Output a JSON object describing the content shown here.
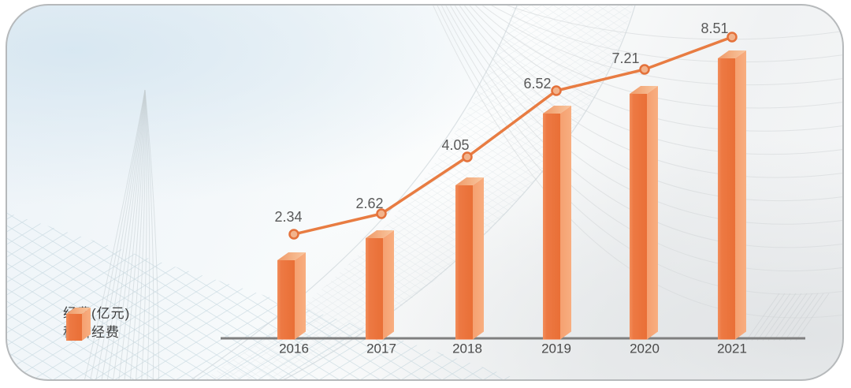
{
  "legend": {
    "axis_unit_label": "经费(亿元)",
    "series_label": "科研经费"
  },
  "chart_data": {
    "type": "bar",
    "title": "",
    "xlabel": "",
    "ylabel": "经费(亿元)",
    "categories": [
      "2016",
      "2017",
      "2018",
      "2019",
      "2020",
      "2021"
    ],
    "values": [
      2.34,
      2.62,
      4.05,
      6.52,
      7.21,
      8.51
    ],
    "series": [
      {
        "name": "科研经费",
        "values": [
          2.34,
          2.62,
          4.05,
          6.52,
          7.21,
          8.51
        ]
      }
    ],
    "data_labels": [
      "2.34",
      "2.62",
      "4.05",
      "6.52",
      "7.21",
      "8.51"
    ],
    "line_overlay": true,
    "grid": false,
    "legend_position": "bottom-left",
    "colors": {
      "bar_front": "#EC7540",
      "bar_front_highlight": "#F28E5C",
      "bar_side": "#F7A97A",
      "bar_top_light": "#F9C7A0",
      "bar_top_dark": "#EF9A68",
      "line": "#E87C42",
      "marker_fill": "#F2B38C",
      "marker_stroke": "#E4713A",
      "axis_line": "#7F7F7F",
      "value_label_text": "#595959",
      "category_text": "#4A4A4A",
      "legend_text": "#3C3C3C",
      "card_border": "#B6B9BB"
    }
  }
}
